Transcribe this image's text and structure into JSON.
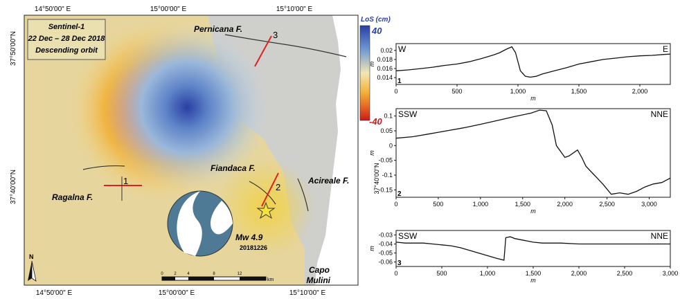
{
  "map": {
    "title_lines": [
      "Sentinel-1",
      "22 Dec – 28 Dec 2018",
      "Descending orbit"
    ],
    "top_ticks": [
      "14°50'00\" E",
      "15°00'00\" E",
      "15°10'00\" E"
    ],
    "bottom_ticks": [
      "14°50'00\" E",
      "15°00'00\" E",
      "15°10'00\" E"
    ],
    "left_ticks": [
      "37°50'00\"N",
      "37°40'00\"N"
    ],
    "fault_labels": {
      "pernicana": "Pernicana F.",
      "fiandaca": "Fiandaca F.",
      "acireale": "Acireale F.",
      "ragalna": "Ragalna F."
    },
    "profile_markers": [
      "1",
      "2",
      "3"
    ],
    "earthquake": {
      "magnitude": "Mw 4.9",
      "date": "20181226"
    },
    "place_label": [
      "Capo",
      "Mulini"
    ],
    "north": "N",
    "scale": {
      "ticks": [
        "0",
        "2",
        "4",
        "8",
        "12"
      ],
      "unit": "km"
    },
    "colors": {
      "positive": "#2a3fa3",
      "zero": "#f2e6b6",
      "negative": "#c91b1b",
      "profile_line": "#e02020",
      "fault": "#333333"
    }
  },
  "colorbar": {
    "title": "LoS (cm)",
    "max": "40",
    "min": "-40"
  },
  "middle_lat_label": "37°40'00\"N",
  "chart_data": [
    {
      "type": "line",
      "id": "1",
      "left_label": "W",
      "right_label": "E",
      "ylabel": "m",
      "xlabel": "m",
      "xlim": [
        0,
        2250
      ],
      "ylim": [
        0.0125,
        0.0215
      ],
      "yticks": [
        "0.02",
        "0.018",
        "0.016",
        "0.014"
      ],
      "ytick_values": [
        0.02,
        0.018,
        0.016,
        0.014
      ],
      "xticks": [
        "0",
        "500",
        "1,000",
        "1,500",
        "2,000"
      ],
      "xtick_values": [
        0,
        500,
        1000,
        1500,
        2000
      ],
      "x": [
        0,
        100,
        200,
        300,
        400,
        500,
        600,
        700,
        800,
        850,
        900,
        950,
        980,
        1020,
        1060,
        1100,
        1150,
        1200,
        1300,
        1400,
        1500,
        1600,
        1700,
        1800,
        1900,
        2000,
        2100,
        2200,
        2250
      ],
      "y": [
        0.0155,
        0.0157,
        0.016,
        0.0163,
        0.0167,
        0.017,
        0.0175,
        0.0182,
        0.019,
        0.0195,
        0.0202,
        0.0208,
        0.0195,
        0.0155,
        0.0143,
        0.0141,
        0.0143,
        0.0148,
        0.0155,
        0.0162,
        0.017,
        0.0175,
        0.018,
        0.0183,
        0.0186,
        0.0188,
        0.0189,
        0.0191,
        0.0192
      ]
    },
    {
      "type": "line",
      "id": "2",
      "left_label": "SSW",
      "right_label": "NNE",
      "ylabel": "m",
      "xlabel": "m",
      "xlim": [
        0,
        3250
      ],
      "ylim": [
        -0.175,
        0.125
      ],
      "yticks": [
        "0.1",
        "0.05",
        "0",
        "-0.05",
        "-0.1",
        "-0.15"
      ],
      "ytick_values": [
        0.1,
        0.05,
        0,
        -0.05,
        -0.1,
        -0.15
      ],
      "xticks": [
        "0",
        "500",
        "1,000",
        "1,500",
        "2,000",
        "2,500",
        "3,000"
      ],
      "xtick_values": [
        0,
        500,
        1000,
        1500,
        2000,
        2500,
        3000
      ],
      "x": [
        0,
        200,
        400,
        600,
        800,
        1000,
        1200,
        1400,
        1600,
        1700,
        1780,
        1850,
        1900,
        2000,
        2050,
        2150,
        2200,
        2250,
        2350,
        2450,
        2550,
        2650,
        2750,
        2850,
        2950,
        3050,
        3150,
        3250
      ],
      "y": [
        0.025,
        0.03,
        0.04,
        0.05,
        0.06,
        0.072,
        0.085,
        0.098,
        0.11,
        0.12,
        0.118,
        0.07,
        0.0,
        -0.04,
        -0.035,
        -0.015,
        -0.04,
        -0.07,
        -0.1,
        -0.13,
        -0.165,
        -0.16,
        -0.165,
        -0.155,
        -0.14,
        -0.13,
        -0.125,
        -0.11
      ]
    },
    {
      "type": "line",
      "id": "3",
      "left_label": "SSW",
      "right_label": "NNE",
      "ylabel": "m",
      "xlabel": "m",
      "xlim": [
        0,
        3000
      ],
      "ylim": [
        -0.065,
        -0.025
      ],
      "yticks": [
        "-0.03",
        "-0.04",
        "-0.05",
        "-0.06"
      ],
      "ytick_values": [
        -0.03,
        -0.04,
        -0.05,
        -0.06
      ],
      "xticks": [
        "0",
        "500",
        "1,000",
        "1,500",
        "2,000",
        "2,500",
        "3,000"
      ],
      "xtick_values": [
        0,
        500,
        1000,
        1500,
        2000,
        2500,
        3000
      ],
      "x": [
        0,
        100,
        200,
        300,
        400,
        500,
        600,
        700,
        800,
        900,
        1000,
        1100,
        1180,
        1200,
        1250,
        1300,
        1400,
        1500,
        1600,
        1800,
        2000,
        2200,
        2400,
        2600,
        2800,
        3000
      ],
      "y": [
        -0.038,
        -0.039,
        -0.039,
        -0.039,
        -0.04,
        -0.041,
        -0.042,
        -0.044,
        -0.047,
        -0.05,
        -0.053,
        -0.056,
        -0.058,
        -0.033,
        -0.032,
        -0.034,
        -0.036,
        -0.038,
        -0.039,
        -0.039,
        -0.04,
        -0.04,
        -0.04,
        -0.04,
        -0.04,
        -0.04
      ]
    }
  ]
}
